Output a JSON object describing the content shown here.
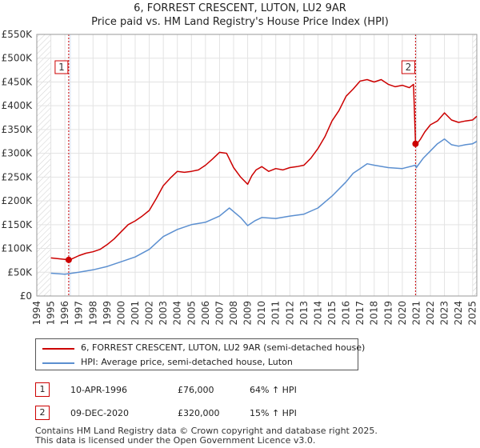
{
  "title_line1": "6, FORREST CRESCENT, LUTON, LU2 9AR",
  "title_line2": "Price paid vs. HM Land Registry's House Price Index (HPI)",
  "chart_data": {
    "type": "line",
    "x_range": [
      1995,
      2025.3
    ],
    "ylim": [
      0,
      550000
    ],
    "y_ticks": [
      0,
      50000,
      100000,
      150000,
      200000,
      250000,
      300000,
      350000,
      400000,
      450000,
      500000,
      550000
    ],
    "y_tick_labels": [
      "£0",
      "£50K",
      "£100K",
      "£150K",
      "£200K",
      "£250K",
      "£300K",
      "£350K",
      "£400K",
      "£450K",
      "£500K",
      "£550K"
    ],
    "x_ticks": [
      1994,
      1995,
      1996,
      1997,
      1998,
      1999,
      2000,
      2001,
      2002,
      2003,
      2004,
      2005,
      2006,
      2007,
      2008,
      2009,
      2010,
      2011,
      2012,
      2013,
      2014,
      2015,
      2016,
      2017,
      2018,
      2019,
      2020,
      2021,
      2022,
      2023,
      2024,
      2025
    ],
    "x_tick_labels": [
      "1994",
      "1995",
      "1996",
      "1997",
      "1998",
      "1999",
      "2000",
      "2001",
      "2002",
      "2003",
      "2004",
      "2005",
      "2006",
      "2007",
      "2008",
      "2009",
      "2010",
      "2011",
      "2012",
      "2013",
      "2014",
      "2015",
      "2016",
      "2017",
      "2018",
      "2019",
      "2020",
      "2021",
      "2022",
      "2023",
      "2024",
      "2025"
    ],
    "grid": true,
    "hatch_regions": [
      [
        1994,
        1995
      ],
      [
        2025,
        2025.3
      ]
    ],
    "series": [
      {
        "name": "6, FORREST CRESCENT, LUTON, LU2 9AR (semi-detached house)",
        "color": "#cc0000",
        "x": [
          1995.0,
          1996.27,
          1996.5,
          1997,
          1997.5,
          1998,
          1998.5,
          1999,
          1999.5,
          2000,
          2000.5,
          2001,
          2001.5,
          2002,
          2002.5,
          2003,
          2003.5,
          2004,
          2004.5,
          2005,
          2005.5,
          2006,
          2006.5,
          2007,
          2007.5,
          2008,
          2008.5,
          2009,
          2009.3,
          2009.6,
          2010,
          2010.5,
          2011,
          2011.5,
          2012,
          2012.5,
          2013,
          2013.5,
          2014,
          2014.5,
          2015,
          2015.5,
          2016,
          2016.5,
          2017,
          2017.5,
          2018,
          2018.5,
          2019,
          2019.5,
          2020,
          2020.5,
          2020.8,
          2020.94,
          2021.0,
          2021.3,
          2021.6,
          2022,
          2022.5,
          2023,
          2023.5,
          2024,
          2024.5,
          2025,
          2025.3
        ],
        "values": [
          80000,
          76000,
          78000,
          85000,
          90000,
          93000,
          98000,
          108000,
          120000,
          135000,
          150000,
          158000,
          168000,
          180000,
          205000,
          232000,
          248000,
          262000,
          260000,
          262000,
          265000,
          275000,
          288000,
          302000,
          300000,
          270000,
          250000,
          235000,
          253000,
          265000,
          272000,
          262000,
          268000,
          265000,
          270000,
          272000,
          275000,
          290000,
          310000,
          335000,
          368000,
          390000,
          420000,
          435000,
          452000,
          455000,
          450000,
          455000,
          445000,
          440000,
          443000,
          438000,
          445000,
          320000,
          318000,
          330000,
          345000,
          360000,
          368000,
          385000,
          370000,
          365000,
          368000,
          370000,
          378000
        ]
      },
      {
        "name": "HPI: Average price, semi-detached house, Luton",
        "color": "#5b8fd0",
        "x": [
          1995.0,
          1996,
          1997,
          1998,
          1999,
          2000,
          2001,
          2002,
          2003,
          2004,
          2005,
          2006,
          2007,
          2007.7,
          2008.5,
          2009,
          2009.5,
          2010,
          2011,
          2012,
          2013,
          2014,
          2015,
          2016,
          2016.5,
          2017,
          2017.5,
          2018,
          2019,
          2020,
          2020.94,
          2021,
          2021.5,
          2022,
          2022.5,
          2023,
          2023.5,
          2024,
          2024.5,
          2025,
          2025.3
        ],
        "values": [
          48000,
          46000,
          50000,
          55000,
          62000,
          72000,
          82000,
          98000,
          125000,
          140000,
          150000,
          155000,
          168000,
          185000,
          165000,
          148000,
          158000,
          165000,
          163000,
          168000,
          172000,
          185000,
          210000,
          240000,
          258000,
          268000,
          278000,
          275000,
          270000,
          268000,
          275000,
          270000,
          290000,
          305000,
          320000,
          330000,
          318000,
          315000,
          318000,
          320000,
          325000
        ]
      }
    ],
    "markers": [
      {
        "label": "1",
        "x": 1996.27,
        "y": 76000
      },
      {
        "label": "2",
        "x": 2020.94,
        "y": 320000
      }
    ]
  },
  "legend": {
    "items": [
      {
        "label": "6, FORREST CRESCENT, LUTON, LU2 9AR (semi-detached house)",
        "color": "#cc0000"
      },
      {
        "label": "HPI: Average price, semi-detached house, Luton",
        "color": "#5b8fd0"
      }
    ]
  },
  "transactions": [
    {
      "num": "1",
      "date": "10-APR-1996",
      "price": "£76,000",
      "hpi": "64% ↑ HPI"
    },
    {
      "num": "2",
      "date": "09-DEC-2020",
      "price": "£320,000",
      "hpi": "15% ↑ HPI"
    }
  ],
  "footer": {
    "line1": "Contains HM Land Registry data © Crown copyright and database right 2025.",
    "line2": "This data is licensed under the Open Government Licence v3.0."
  }
}
